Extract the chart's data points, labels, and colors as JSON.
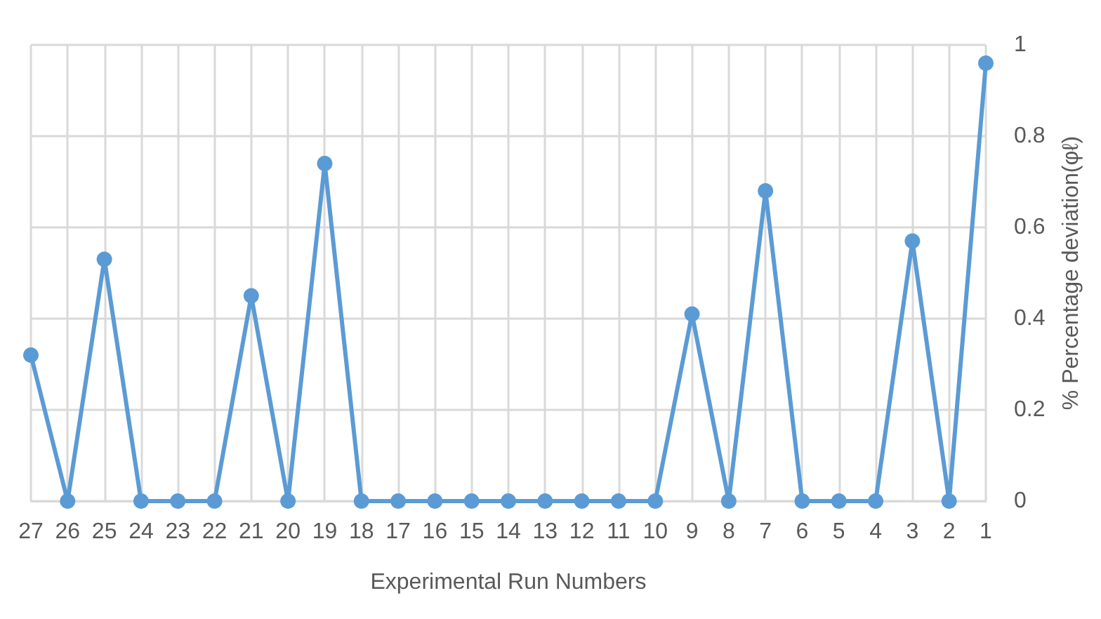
{
  "chart_data": {
    "type": "line",
    "xlabel": "Experimental Run Numbers",
    "ylabel": "% Percentage deviation(φℓ)",
    "categories": [
      "27",
      "26",
      "25",
      "24",
      "23",
      "22",
      "21",
      "20",
      "19",
      "18",
      "17",
      "16",
      "15",
      "14",
      "13",
      "12",
      "11",
      "10",
      "9",
      "8",
      "7",
      "6",
      "5",
      "4",
      "3",
      "2",
      "1"
    ],
    "series": [
      {
        "color": "#5b9bd5",
        "values": [
          0.32,
          0,
          0.53,
          0,
          0,
          0,
          0.45,
          0,
          0.74,
          0,
          0,
          0,
          0,
          0,
          0,
          0,
          0,
          0,
          0.41,
          0,
          0.68,
          0,
          0,
          0,
          0.57,
          0,
          0.96
        ]
      }
    ],
    "ylim": [
      0,
      1
    ],
    "yticks": [
      0,
      0.2,
      0.4,
      0.6,
      0.8,
      1
    ],
    "grid": true,
    "marker": "circle",
    "line_style": "solid"
  }
}
